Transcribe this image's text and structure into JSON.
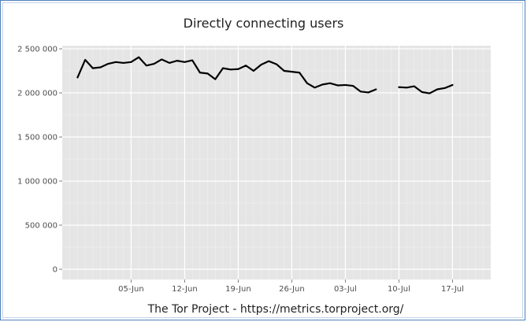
{
  "chart_data": {
    "type": "line",
    "title": "Directly connecting users",
    "caption": "The Tor Project - https://metrics.torproject.org/",
    "xlabel": "",
    "ylabel": "",
    "ylim": [
      0,
      2500000
    ],
    "y_ticks": [
      0,
      500000,
      1000000,
      1500000,
      2000000,
      2500000
    ],
    "y_tick_labels": [
      "0",
      "500 000",
      "1 000 000",
      "1 500 000",
      "2 000 000",
      "2 500 000"
    ],
    "x_range": [
      "2015-05-27",
      "2015-07-22"
    ],
    "x_ticks": [
      "2015-06-05",
      "2015-06-12",
      "2015-06-19",
      "2015-06-26",
      "2015-07-03",
      "2015-07-10",
      "2015-07-17"
    ],
    "x_tick_labels": [
      "05-Jun",
      "12-Jun",
      "19-Jun",
      "26-Jun",
      "03-Jul",
      "10-Jul",
      "17-Jul"
    ],
    "grid": true,
    "series": [
      {
        "values": [
          [
            "2015-05-29",
            2175000
          ],
          [
            "2015-05-30",
            2375000
          ],
          [
            "2015-05-31",
            2280000
          ],
          [
            "2015-06-01",
            2290000
          ],
          [
            "2015-06-02",
            2330000
          ],
          [
            "2015-06-03",
            2350000
          ],
          [
            "2015-06-04",
            2340000
          ],
          [
            "2015-06-05",
            2350000
          ],
          [
            "2015-06-06",
            2405000
          ],
          [
            "2015-06-07",
            2310000
          ],
          [
            "2015-06-08",
            2330000
          ],
          [
            "2015-06-09",
            2380000
          ],
          [
            "2015-06-10",
            2340000
          ],
          [
            "2015-06-11",
            2365000
          ],
          [
            "2015-06-12",
            2350000
          ],
          [
            "2015-06-13",
            2370000
          ],
          [
            "2015-06-14",
            2230000
          ],
          [
            "2015-06-15",
            2220000
          ],
          [
            "2015-06-16",
            2155000
          ],
          [
            "2015-06-17",
            2280000
          ],
          [
            "2015-06-18",
            2265000
          ],
          [
            "2015-06-19",
            2270000
          ],
          [
            "2015-06-20",
            2310000
          ],
          [
            "2015-06-21",
            2250000
          ],
          [
            "2015-06-22",
            2320000
          ],
          [
            "2015-06-23",
            2360000
          ],
          [
            "2015-06-24",
            2325000
          ],
          [
            "2015-06-25",
            2250000
          ],
          [
            "2015-06-26",
            2240000
          ],
          [
            "2015-06-27",
            2230000
          ],
          [
            "2015-06-28",
            2110000
          ],
          [
            "2015-06-29",
            2060000
          ],
          [
            "2015-06-30",
            2095000
          ],
          [
            "2015-07-01",
            2110000
          ],
          [
            "2015-07-02",
            2085000
          ],
          [
            "2015-07-03",
            2090000
          ],
          [
            "2015-07-04",
            2080000
          ],
          [
            "2015-07-05",
            2015000
          ],
          [
            "2015-07-06",
            2005000
          ],
          [
            "2015-07-07",
            2040000
          ],
          [
            "2015-07-08",
            null
          ],
          [
            "2015-07-09",
            null
          ],
          [
            "2015-07-10",
            2065000
          ],
          [
            "2015-07-11",
            2060000
          ],
          [
            "2015-07-12",
            2075000
          ],
          [
            "2015-07-13",
            2010000
          ],
          [
            "2015-07-14",
            1995000
          ],
          [
            "2015-07-15",
            2040000
          ],
          [
            "2015-07-16",
            2055000
          ],
          [
            "2015-07-17",
            2090000
          ]
        ],
        "color": "#000000"
      }
    ]
  }
}
